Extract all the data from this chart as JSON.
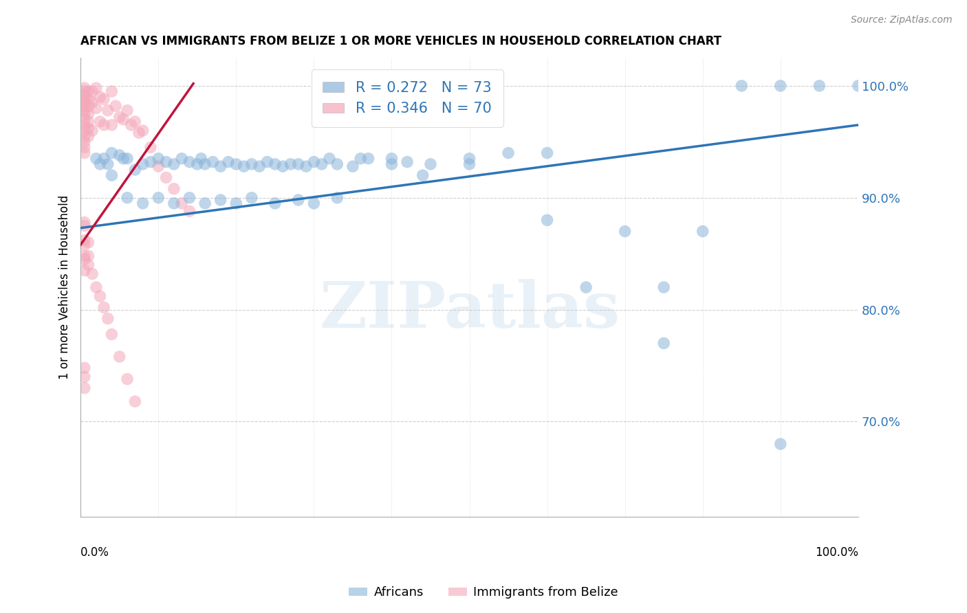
{
  "title": "AFRICAN VS IMMIGRANTS FROM BELIZE 1 OR MORE VEHICLES IN HOUSEHOLD CORRELATION CHART",
  "source": "Source: ZipAtlas.com",
  "ylabel": "1 or more Vehicles in Household",
  "xmin": 0.0,
  "xmax": 1.0,
  "ymin": 0.615,
  "ymax": 1.025,
  "yticks": [
    0.7,
    0.8,
    0.9,
    1.0
  ],
  "ytick_labels": [
    "70.0%",
    "80.0%",
    "90.0%",
    "100.0%"
  ],
  "xticks": [
    0.0,
    0.1,
    0.2,
    0.3,
    0.4,
    0.5,
    0.6,
    0.7,
    0.8,
    0.9,
    1.0
  ],
  "grid_color": "#c8c8c8",
  "background_color": "#ffffff",
  "blue_color": "#8ab4d9",
  "pink_color": "#f4a7b9",
  "blue_line_color": "#2e75b6",
  "pink_line_color": "#c0143c",
  "legend_R_blue": "R = 0.272",
  "legend_N_blue": "N = 73",
  "legend_R_pink": "R = 0.346",
  "legend_N_pink": "N = 70",
  "legend_label_blue": "Africans",
  "legend_label_pink": "Immigrants from Belize",
  "watermark": "ZIPatlas",
  "blue_scatter_x": [
    0.02,
    0.025,
    0.03,
    0.035,
    0.04,
    0.04,
    0.05,
    0.055,
    0.06,
    0.07,
    0.08,
    0.09,
    0.1,
    0.11,
    0.12,
    0.13,
    0.14,
    0.15,
    0.155,
    0.16,
    0.17,
    0.18,
    0.19,
    0.2,
    0.21,
    0.22,
    0.23,
    0.24,
    0.25,
    0.26,
    0.27,
    0.28,
    0.29,
    0.3,
    0.31,
    0.32,
    0.33,
    0.35,
    0.37,
    0.4,
    0.42,
    0.44,
    0.5,
    0.55,
    0.6,
    0.65,
    0.7,
    0.75,
    0.8,
    0.85,
    0.9,
    0.95,
    1.0,
    0.06,
    0.08,
    0.1,
    0.12,
    0.14,
    0.16,
    0.18,
    0.2,
    0.22,
    0.25,
    0.28,
    0.3,
    0.33,
    0.36,
    0.4,
    0.45,
    0.5,
    0.6,
    0.75,
    0.9
  ],
  "blue_scatter_y": [
    0.935,
    0.93,
    0.935,
    0.93,
    0.94,
    0.92,
    0.938,
    0.935,
    0.935,
    0.925,
    0.93,
    0.932,
    0.935,
    0.932,
    0.93,
    0.935,
    0.932,
    0.93,
    0.935,
    0.93,
    0.932,
    0.928,
    0.932,
    0.93,
    0.928,
    0.93,
    0.928,
    0.932,
    0.93,
    0.928,
    0.93,
    0.93,
    0.928,
    0.932,
    0.93,
    0.935,
    0.93,
    0.928,
    0.935,
    0.93,
    0.932,
    0.92,
    0.93,
    0.94,
    0.94,
    0.82,
    0.87,
    0.82,
    0.87,
    1.0,
    1.0,
    1.0,
    1.0,
    0.9,
    0.895,
    0.9,
    0.895,
    0.9,
    0.895,
    0.898,
    0.895,
    0.9,
    0.895,
    0.898,
    0.895,
    0.9,
    0.935,
    0.935,
    0.93,
    0.935,
    0.88,
    0.77,
    0.68
  ],
  "pink_scatter_x": [
    0.005,
    0.005,
    0.005,
    0.005,
    0.005,
    0.005,
    0.005,
    0.005,
    0.005,
    0.005,
    0.005,
    0.005,
    0.005,
    0.005,
    0.005,
    0.01,
    0.01,
    0.01,
    0.01,
    0.01,
    0.01,
    0.01,
    0.015,
    0.015,
    0.015,
    0.02,
    0.02,
    0.025,
    0.025,
    0.03,
    0.03,
    0.035,
    0.04,
    0.04,
    0.045,
    0.05,
    0.055,
    0.06,
    0.065,
    0.07,
    0.075,
    0.08,
    0.09,
    0.1,
    0.11,
    0.12,
    0.13,
    0.14,
    0.005,
    0.005,
    0.005,
    0.005,
    0.005,
    0.005,
    0.005,
    0.005,
    0.005,
    0.005,
    0.01,
    0.01,
    0.01,
    0.015,
    0.02,
    0.025,
    0.03,
    0.035,
    0.04,
    0.05,
    0.06,
    0.07
  ],
  "pink_scatter_y": [
    0.998,
    0.995,
    0.992,
    0.988,
    0.985,
    0.982,
    0.978,
    0.975,
    0.97,
    0.965,
    0.96,
    0.955,
    0.95,
    0.945,
    0.94,
    0.995,
    0.988,
    0.982,
    0.975,
    0.968,
    0.962,
    0.955,
    0.995,
    0.985,
    0.96,
    0.998,
    0.98,
    0.99,
    0.968,
    0.988,
    0.965,
    0.978,
    0.995,
    0.965,
    0.982,
    0.972,
    0.97,
    0.978,
    0.965,
    0.968,
    0.958,
    0.96,
    0.945,
    0.928,
    0.918,
    0.908,
    0.895,
    0.888,
    0.878,
    0.875,
    0.862,
    0.858,
    0.848,
    0.845,
    0.835,
    0.748,
    0.74,
    0.73,
    0.86,
    0.848,
    0.84,
    0.832,
    0.82,
    0.812,
    0.802,
    0.792,
    0.778,
    0.758,
    0.738,
    0.718
  ],
  "blue_line_x": [
    0.0,
    1.0
  ],
  "blue_line_y": [
    0.873,
    0.965
  ],
  "pink_line_x": [
    0.0,
    0.145
  ],
  "pink_line_y": [
    0.858,
    1.002
  ]
}
